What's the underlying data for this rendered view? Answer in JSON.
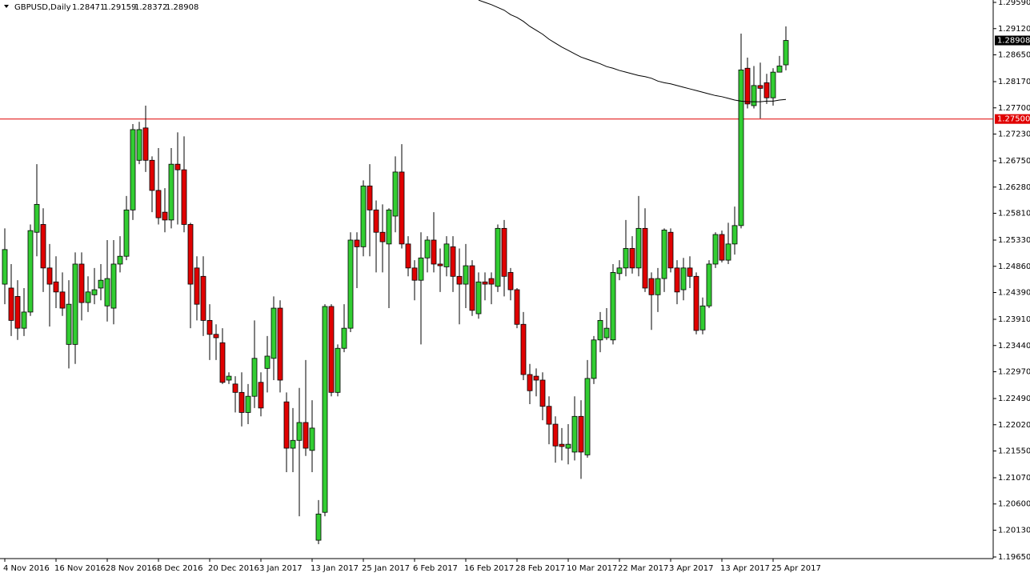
{
  "chart_data": {
    "type": "candlestick",
    "title": "GBPUSD,Daily",
    "categories": [
      "4 Nov 2016",
      null,
      null,
      null,
      null,
      null,
      null,
      null,
      "16 Nov 2016",
      null,
      null,
      null,
      null,
      null,
      null,
      null,
      "28 Nov 2016",
      null,
      null,
      null,
      null,
      null,
      null,
      null,
      "8 Dec 2016",
      null,
      null,
      null,
      null,
      null,
      null,
      null,
      "20 Dec 2016",
      null,
      null,
      null,
      null,
      null,
      null,
      null,
      "3 Jan 2017",
      null,
      null,
      null,
      null,
      null,
      null,
      null,
      "13 Jan 2017",
      null,
      null,
      null,
      null,
      null,
      null,
      null,
      "25 Jan 2017",
      null,
      null,
      null,
      null,
      null,
      null,
      null,
      "6 Feb 2017",
      null,
      null,
      null,
      null,
      null,
      null,
      null,
      "16 Feb 2017",
      null,
      null,
      null,
      null,
      null,
      null,
      null,
      "28 Feb 2017",
      null,
      null,
      null,
      null,
      null,
      null,
      null,
      "10 Mar 2017",
      null,
      null,
      null,
      null,
      null,
      null,
      null,
      "22 Mar 2017",
      null,
      null,
      null,
      null,
      null,
      null,
      null,
      "3 Apr 2017",
      null,
      null,
      null,
      null,
      null,
      null,
      null,
      "13 Apr 2017",
      null,
      null,
      null,
      null,
      null,
      null,
      null,
      "25 Apr 2017",
      null,
      null
    ],
    "open": [
      1.2454,
      1.2447,
      1.2432,
      1.2375,
      1.2404,
      1.2547,
      1.2561,
      1.2483,
      1.2458,
      1.244,
      1.2346,
      1.2346,
      1.249,
      1.2421,
      1.2435,
      1.2447,
      1.2415,
      1.2411,
      1.249,
      1.2504,
      1.2587,
      1.2676,
      1.2734,
      1.2676,
      1.2622,
      1.2583,
      1.2569,
      1.2669,
      1.2659,
      1.2561,
      1.2483,
      1.2468,
      1.2389,
      1.2364,
      1.2349,
      1.2282,
      1.2275,
      1.226,
      1.2224,
      1.2253,
      1.2278,
      1.2303,
      1.2321,
      1.2411,
      1.2243,
      1.216,
      1.2174,
      1.2206,
      1.2156,
      1.1995,
      1.2045,
      1.2414,
      1.226,
      1.2339,
      1.2375,
      1.2533,
      1.2521,
      1.263,
      1.2587,
      1.2547,
      1.2526,
      1.2576,
      1.2655,
      1.2526,
      1.2483,
      1.2461,
      1.2501,
      1.2533,
      1.249,
      1.2485,
      1.2521,
      1.2468,
      1.2454,
      1.2487,
      1.2401,
      1.2458,
      1.2464,
      1.245,
      1.2554,
      1.2475,
      1.2444,
      1.2382,
      1.2292,
      1.2289,
      1.2282,
      1.2235,
      1.2203,
      1.2167,
      1.216,
      1.2153,
      1.2217,
      1.2148,
      1.2285,
      1.2354,
      1.2358,
      1.2354,
      1.2473,
      1.2483,
      1.2518,
      1.2483,
      1.2554,
      1.2464,
      1.2435,
      1.2464,
      1.2547,
      1.2483,
      1.2444,
      1.2483,
      1.2468,
      1.2372,
      1.2415,
      1.249,
      1.2543,
      1.2497,
      1.2526,
      1.2559,
      1.2841,
      1.2774,
      1.281,
      1.2815,
      1.2788,
      1.2834,
      1.28471
    ],
    "high": [
      1.2554,
      1.249,
      1.2461,
      1.2447,
      1.2561,
      1.2669,
      1.259,
      1.2526,
      1.2504,
      1.2475,
      1.2461,
      1.2511,
      1.2511,
      1.2468,
      1.2483,
      1.249,
      1.2533,
      1.2533,
      1.254,
      1.2612,
      1.2741,
      1.2745,
      1.2774,
      1.2683,
      1.2698,
      1.2626,
      1.2698,
      1.2726,
      1.2719,
      1.2564,
      1.2504,
      1.2504,
      1.2418,
      1.2382,
      1.2375,
      1.2296,
      1.2289,
      1.2296,
      1.2275,
      1.2389,
      1.2296,
      1.2361,
      1.2432,
      1.2425,
      1.226,
      1.2232,
      1.2268,
      1.2318,
      1.2246,
      1.2067,
      1.2418,
      1.2418,
      1.2346,
      1.2418,
      1.2547,
      1.2547,
      1.264,
      1.2669,
      1.2604,
      1.2597,
      1.259,
      1.2683,
      1.2705,
      1.254,
      1.2497,
      1.2547,
      1.254,
      1.2583,
      1.2518,
      1.254,
      1.254,
      1.2518,
      1.2526,
      1.2497,
      1.2475,
      1.2475,
      1.2475,
      1.2561,
      1.2569,
      1.2483,
      1.2447,
      1.2404,
      1.2311,
      1.2303,
      1.2296,
      1.2253,
      1.2217,
      1.2196,
      1.2203,
      1.2253,
      1.2246,
      1.2318,
      1.2361,
      1.2404,
      1.2411,
      1.249,
      1.2497,
      1.2569,
      1.254,
      1.2612,
      1.259,
      1.2475,
      1.2483,
      1.2554,
      1.2554,
      1.2497,
      1.2501,
      1.2504,
      1.2475,
      1.243,
      1.2497,
      1.2547,
      1.255,
      1.2564,
      1.2593,
      1.2903,
      1.286,
      1.2845,
      1.2851,
      1.2831,
      1.2841,
      1.2863,
      1.29159
    ],
    "low": [
      1.2418,
      1.2361,
      1.2354,
      1.2361,
      1.2397,
      1.2504,
      1.244,
      1.2378,
      1.2411,
      1.2397,
      1.2303,
      1.2311,
      1.2389,
      1.2404,
      1.2418,
      1.2425,
      1.2387,
      1.2382,
      1.2475,
      1.2497,
      1.2569,
      1.2669,
      1.2655,
      1.2583,
      1.2561,
      1.2547,
      1.2554,
      1.2561,
      1.2547,
      1.2375,
      1.2389,
      1.2361,
      1.2318,
      1.2318,
      1.2275,
      1.2275,
      1.2224,
      1.2199,
      1.2203,
      1.2232,
      1.2217,
      1.226,
      1.2282,
      1.226,
      1.2117,
      1.2117,
      1.2038,
      1.2146,
      1.2117,
      1.1988,
      1.2038,
      1.2253,
      1.2253,
      1.2332,
      1.2368,
      1.2447,
      1.2504,
      1.2504,
      1.2475,
      1.2475,
      1.2411,
      1.2547,
      1.2518,
      1.2468,
      1.2425,
      1.2346,
      1.2475,
      1.2475,
      1.244,
      1.2468,
      1.244,
      1.2382,
      1.2411,
      1.2397,
      1.2392,
      1.2425,
      1.2418,
      1.244,
      1.2432,
      1.2425,
      1.2375,
      1.2282,
      1.2239,
      1.2253,
      1.221,
      1.2167,
      1.2134,
      1.2138,
      1.2131,
      1.2138,
      1.2105,
      1.2143,
      1.2275,
      1.2332,
      1.2354,
      1.2346,
      1.2461,
      1.2468,
      1.2473,
      1.2468,
      1.244,
      1.2372,
      1.2404,
      1.244,
      1.2475,
      1.2418,
      1.2425,
      1.2447,
      1.2364,
      1.2364,
      1.2411,
      1.2483,
      1.2493,
      1.249,
      1.2507,
      1.2554,
      1.2769,
      1.2769,
      1.2751,
      1.2777,
      1.2774,
      1.2834,
      1.28372
    ],
    "close": [
      1.2516,
      1.2389,
      1.2375,
      1.2404,
      1.255,
      1.2597,
      1.2483,
      1.2454,
      1.244,
      1.2411,
      1.2418,
      1.249,
      1.2421,
      1.244,
      1.2444,
      1.2461,
      1.2464,
      1.249,
      1.2504,
      1.2587,
      1.2731,
      1.2731,
      1.2676,
      1.2622,
      1.2573,
      1.2569,
      1.2669,
      1.2659,
      1.2561,
      1.2454,
      1.2418,
      1.2389,
      1.2364,
      1.2358,
      1.2278,
      1.2289,
      1.226,
      1.2224,
      1.2253,
      1.2321,
      1.2232,
      1.2325,
      1.2411,
      1.2282,
      1.216,
      1.2174,
      1.2206,
      1.216,
      1.2196,
      1.2042,
      1.2414,
      1.226,
      1.2339,
      1.2375,
      1.2533,
      1.2521,
      1.263,
      1.2587,
      1.2547,
      1.253,
      1.2587,
      1.2655,
      1.2526,
      1.2483,
      1.2461,
      1.2501,
      1.2533,
      1.249,
      1.2487,
      1.2526,
      1.2468,
      1.2454,
      1.2487,
      1.2407,
      1.2458,
      1.2454,
      1.2454,
      1.2554,
      1.2468,
      1.2444,
      1.2382,
      1.2292,
      1.2263,
      1.2282,
      1.2235,
      1.2203,
      1.2164,
      1.2163,
      1.2167,
      1.2217,
      1.2153,
      1.2285,
      1.2354,
      1.2389,
      1.2375,
      1.2475,
      1.2483,
      1.2518,
      1.2483,
      1.2554,
      1.2447,
      1.2435,
      1.2464,
      1.2551,
      1.2483,
      1.244,
      1.2483,
      1.2468,
      1.2371,
      1.2415,
      1.249,
      1.2543,
      1.2497,
      1.2526,
      1.2559,
      1.2838,
      1.2777,
      1.281,
      1.2805,
      1.2788,
      1.2834,
      1.2845,
      1.28908
    ],
    "up_color": "#32cd32",
    "down_color": "#e00000",
    "wick_color": "#000000",
    "lines": [
      {
        "color": "#000000",
        "values": [
          null,
          null,
          null,
          null,
          null,
          null,
          null,
          null,
          null,
          null,
          null,
          null,
          null,
          null,
          null,
          null,
          null,
          null,
          null,
          null,
          null,
          null,
          null,
          null,
          null,
          null,
          null,
          null,
          null,
          null,
          null,
          null,
          null,
          null,
          null,
          null,
          null,
          null,
          null,
          null,
          null,
          null,
          null,
          null,
          null,
          null,
          null,
          null,
          null,
          null,
          null,
          null,
          null,
          null,
          null,
          null,
          null,
          null,
          null,
          null,
          null,
          null,
          null,
          null,
          null,
          null,
          null,
          null,
          null,
          null,
          null,
          null,
          null,
          null,
          1.2963,
          1.2959,
          1.2955,
          1.295,
          1.2945,
          1.2937,
          1.2932,
          1.2925,
          1.2916,
          1.2909,
          1.2902,
          1.2893,
          1.2886,
          1.2879,
          1.2873,
          1.2867,
          1.2861,
          1.2857,
          1.2853,
          1.2849,
          1.2844,
          1.2841,
          1.2837,
          1.2834,
          1.2831,
          1.2828,
          1.2826,
          1.2823,
          1.2818,
          1.2815,
          1.2813,
          1.281,
          1.2807,
          1.2804,
          1.2801,
          1.2798,
          1.2795,
          1.2792,
          1.279,
          1.2787,
          1.2784,
          1.2782,
          1.2781,
          1.2781,
          1.2781,
          1.2782,
          1.2782,
          1.2784,
          1.2785
        ]
      }
    ],
    "hline": {
      "value": 1.275,
      "label": "1.27500",
      "color": "#e00000"
    },
    "ylim": [
      1.19621,
      1.29633
    ],
    "yticks": [
      {
        "value": 1.2959,
        "label": "1.29590"
      },
      {
        "value": 1.2912,
        "label": "1.29120"
      },
      {
        "value": 1.2865,
        "label": "1.28650"
      },
      {
        "value": 1.2817,
        "label": "1.28170"
      },
      {
        "value": 1.277,
        "label": "1.27700"
      },
      {
        "value": 1.2723,
        "label": "1.27230"
      },
      {
        "value": 1.2675,
        "label": "1.26750"
      },
      {
        "value": 1.2628,
        "label": "1.26280"
      },
      {
        "value": 1.2581,
        "label": "1.25810"
      },
      {
        "value": 1.2533,
        "label": "1.25330"
      },
      {
        "value": 1.2486,
        "label": "1.24860"
      },
      {
        "value": 1.2439,
        "label": "1.24390"
      },
      {
        "value": 1.2391,
        "label": "1.23910"
      },
      {
        "value": 1.2344,
        "label": "1.23440"
      },
      {
        "value": 1.2297,
        "label": "1.22970"
      },
      {
        "value": 1.2249,
        "label": "1.22490"
      },
      {
        "value": 1.2202,
        "label": "1.22020"
      },
      {
        "value": 1.2155,
        "label": "1.21550"
      },
      {
        "value": 1.2107,
        "label": "1.21070"
      },
      {
        "value": 1.206,
        "label": "1.20600"
      },
      {
        "value": 1.2013,
        "label": "1.20130"
      },
      {
        "value": 1.1965,
        "label": "1.19650"
      }
    ],
    "grid": false
  }
}
